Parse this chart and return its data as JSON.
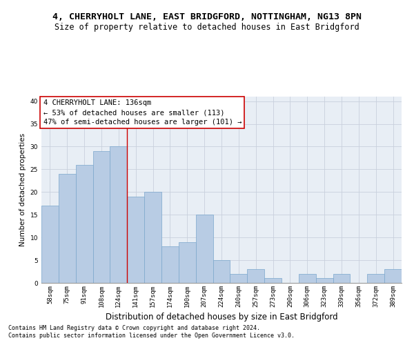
{
  "title": "4, CHERRYHOLT LANE, EAST BRIDGFORD, NOTTINGHAM, NG13 8PN",
  "subtitle": "Size of property relative to detached houses in East Bridgford",
  "xlabel": "Distribution of detached houses by size in East Bridgford",
  "ylabel": "Number of detached properties",
  "footnote1": "Contains HM Land Registry data © Crown copyright and database right 2024.",
  "footnote2": "Contains public sector information licensed under the Open Government Licence v3.0.",
  "categories": [
    "58sqm",
    "75sqm",
    "91sqm",
    "108sqm",
    "124sqm",
    "141sqm",
    "157sqm",
    "174sqm",
    "190sqm",
    "207sqm",
    "224sqm",
    "240sqm",
    "257sqm",
    "273sqm",
    "290sqm",
    "306sqm",
    "323sqm",
    "339sqm",
    "356sqm",
    "372sqm",
    "389sqm"
  ],
  "values": [
    17,
    24,
    26,
    29,
    30,
    19,
    20,
    8,
    9,
    15,
    5,
    2,
    3,
    1,
    0,
    2,
    1,
    2,
    0,
    2,
    3
  ],
  "bar_color": "#b8cce4",
  "bar_edge_color": "#7aa6cc",
  "vline_x": 4.5,
  "vline_color": "#cc0000",
  "annotation_line1": "4 CHERRYHOLT LANE: 136sqm",
  "annotation_line2": "← 53% of detached houses are smaller (113)",
  "annotation_line3": "47% of semi-detached houses are larger (101) →",
  "annotation_box_color": "#ffffff",
  "annotation_box_edge": "#cc0000",
  "ylim": [
    0,
    41
  ],
  "yticks": [
    0,
    5,
    10,
    15,
    20,
    25,
    30,
    35,
    40
  ],
  "grid_color": "#c8d0dc",
  "background_color": "#e8eef5",
  "title_fontsize": 9.5,
  "subtitle_fontsize": 8.5,
  "xlabel_fontsize": 8.5,
  "ylabel_fontsize": 7.5,
  "tick_fontsize": 6.5,
  "annotation_fontsize": 7.5,
  "footnote_fontsize": 6.0
}
